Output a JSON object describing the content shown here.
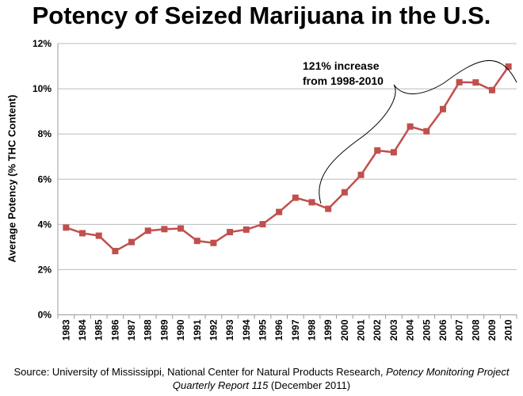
{
  "chart_data": {
    "type": "line",
    "title": "Potency of Seized Marijuana in the U.S.",
    "xlabel": "",
    "ylabel": "Average Potency (% THC Content)",
    "categories": [
      "1983",
      "1984",
      "1985",
      "1986",
      "1987",
      "1988",
      "1989",
      "1990",
      "1991",
      "1992",
      "1993",
      "1994",
      "1995",
      "1996",
      "1997",
      "1998",
      "1999",
      "2000",
      "2001",
      "2002",
      "2003",
      "2004",
      "2005",
      "2006",
      "2007",
      "2008",
      "2009",
      "2010"
    ],
    "values": [
      3.86,
      3.61,
      3.5,
      2.82,
      3.22,
      3.72,
      3.79,
      3.82,
      3.27,
      3.18,
      3.66,
      3.77,
      4.01,
      4.55,
      5.18,
      4.98,
      4.69,
      5.42,
      6.19,
      7.27,
      7.19,
      8.33,
      8.12,
      9.1,
      10.29,
      10.28,
      9.94,
      10.98
    ],
    "ylim": [
      0,
      12
    ],
    "yticks": [
      0,
      2,
      4,
      6,
      8,
      10,
      12
    ],
    "ytick_labels": [
      "0%",
      "2%",
      "4%",
      "6%",
      "8%",
      "10%",
      "12%"
    ],
    "grid": "horizontal",
    "series_color": "#c0504d",
    "marker": "square",
    "annotation": {
      "line1": "121% increase",
      "line2": "from 1998-2010"
    },
    "source_prefix": "Source: University of Mississippi, National Center for Natural Products Research, ",
    "source_italic": "Potency Monitoring Project Quarterly Report 115",
    "source_suffix": " (December 2011)"
  }
}
